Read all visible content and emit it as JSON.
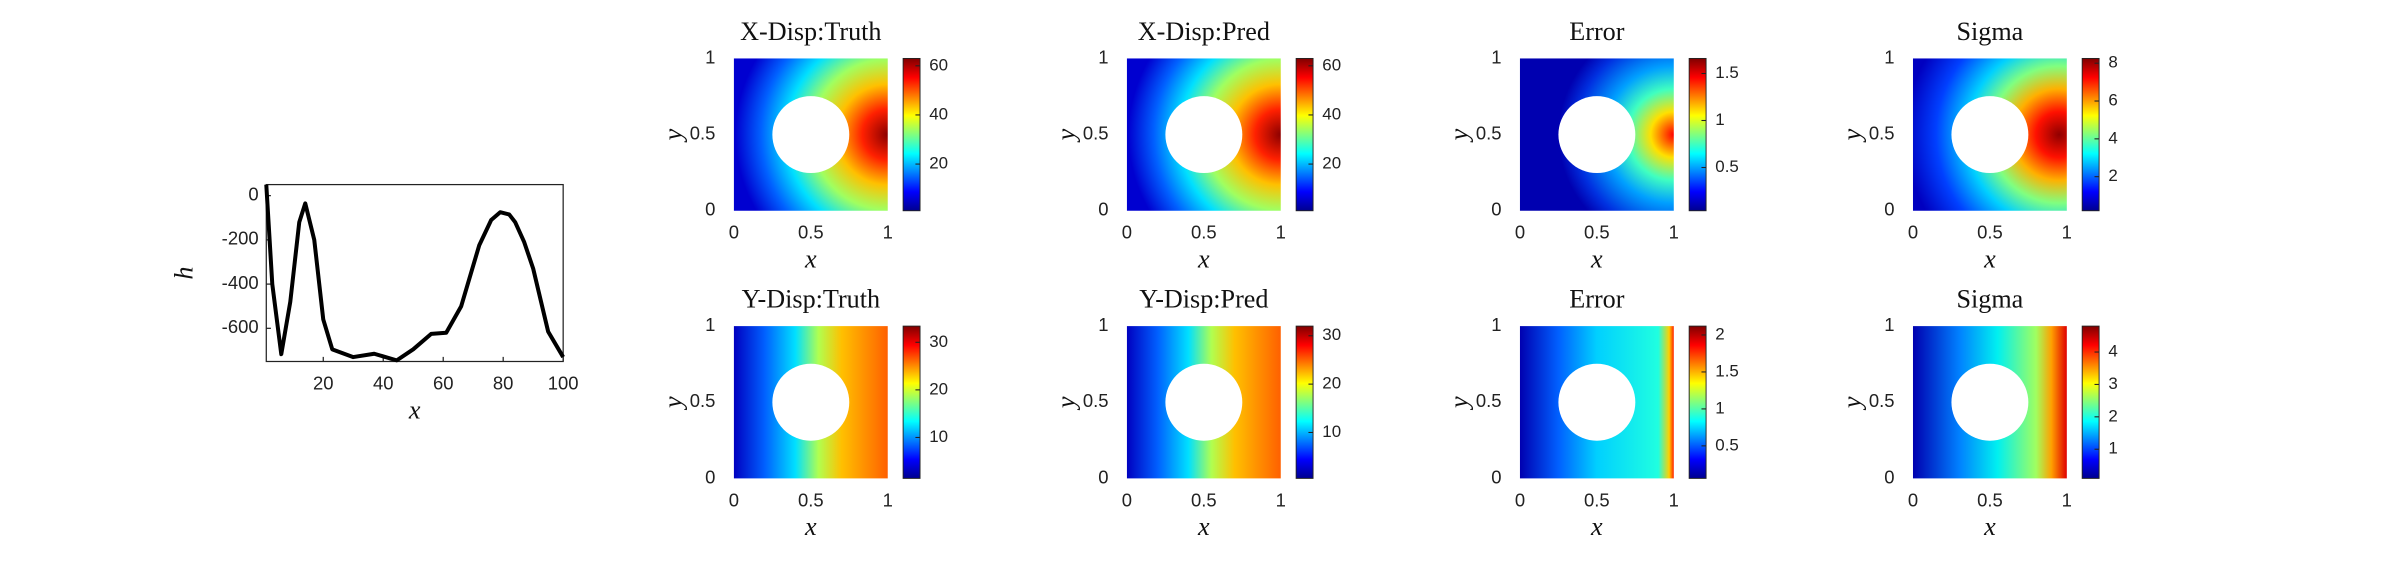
{
  "chart_data": [
    {
      "type": "line",
      "xlabel": "x",
      "ylabel": "h",
      "color": "#000000",
      "x": [
        1,
        3,
        6,
        9,
        12,
        14,
        17,
        20,
        23,
        30,
        37,
        44.5,
        50,
        56,
        61,
        66,
        72,
        76,
        79,
        82,
        84,
        87,
        90,
        95,
        100
      ],
      "values": [
        50,
        -400,
        -717,
        -480,
        -120,
        -35,
        -200,
        -560,
        -695,
        -730,
        -715,
        -745,
        -695,
        -625,
        -620,
        -500,
        -225,
        -110,
        -75,
        -85,
        -120,
        -210,
        -330,
        -615,
        -730
      ],
      "xlim": [
        1,
        100
      ],
      "xticks": [
        20,
        40,
        60,
        80,
        100
      ],
      "ylim": [
        -750,
        50
      ],
      "yticks": [
        0,
        -200,
        -400,
        -600
      ]
    },
    {
      "type": "heatmap",
      "title": "X-Disp:Truth",
      "xlabel": "x",
      "ylabel": "y",
      "xlim": [
        0,
        1
      ],
      "ylim": [
        0,
        1
      ],
      "xticks": [
        0,
        0.5,
        1
      ],
      "yticks": [
        0,
        0.5,
        1
      ],
      "clim": [
        1,
        63
      ],
      "cticks": [
        20,
        40,
        60
      ]
    },
    {
      "type": "heatmap",
      "title": "X-Disp:Pred",
      "xlabel": "x",
      "ylabel": "y",
      "xlim": [
        0,
        1
      ],
      "ylim": [
        0,
        1
      ],
      "xticks": [
        0,
        0.5,
        1
      ],
      "yticks": [
        0,
        0.5,
        1
      ],
      "clim": [
        1,
        63
      ],
      "cticks": [
        20,
        40,
        60
      ]
    },
    {
      "type": "heatmap",
      "title": "Error",
      "xlabel": "x",
      "ylabel": "y",
      "xlim": [
        0,
        1
      ],
      "ylim": [
        0,
        1
      ],
      "xticks": [
        0,
        0.5,
        1
      ],
      "yticks": [
        0,
        0.5,
        1
      ],
      "clim": [
        0.04,
        1.66
      ],
      "cticks": [
        0.5,
        1,
        1.5
      ]
    },
    {
      "type": "heatmap",
      "title": "Sigma",
      "xlabel": "x",
      "ylabel": "y",
      "xlim": [
        0,
        1
      ],
      "ylim": [
        0,
        1
      ],
      "xticks": [
        0,
        0.5,
        1
      ],
      "yticks": [
        0,
        0.5,
        1
      ],
      "clim": [
        0.2,
        8.25
      ],
      "cticks": [
        2,
        4,
        6,
        8
      ]
    },
    {
      "type": "heatmap",
      "title": "Y-Disp:Truth",
      "xlabel": "x",
      "ylabel": "y",
      "xlim": [
        0,
        1
      ],
      "ylim": [
        0,
        1
      ],
      "xticks": [
        0,
        0.5,
        1
      ],
      "yticks": [
        0,
        0.5,
        1
      ],
      "clim": [
        1.4,
        33.4
      ],
      "cticks": [
        10,
        20,
        30
      ]
    },
    {
      "type": "heatmap",
      "title": "Y-Disp:Pred",
      "xlabel": "x",
      "ylabel": "y",
      "xlim": [
        0,
        1
      ],
      "ylim": [
        0,
        1
      ],
      "xticks": [
        0,
        0.5,
        1
      ],
      "yticks": [
        0,
        0.5,
        1
      ],
      "clim": [
        0.5,
        32
      ],
      "cticks": [
        10,
        20,
        30
      ]
    },
    {
      "type": "heatmap",
      "title": "Error",
      "xlabel": "x",
      "ylabel": "y",
      "xlim": [
        0,
        1
      ],
      "ylim": [
        0,
        1
      ],
      "xticks": [
        0,
        0.5,
        1
      ],
      "yticks": [
        0,
        0.5,
        1
      ],
      "clim": [
        0.06,
        2.12
      ],
      "cticks": [
        0.5,
        1,
        1.5,
        2
      ]
    },
    {
      "type": "heatmap",
      "title": "Sigma",
      "xlabel": "x",
      "ylabel": "y",
      "xlim": [
        0,
        1
      ],
      "ylim": [
        0,
        1
      ],
      "xticks": [
        0,
        0.5,
        1
      ],
      "yticks": [
        0,
        0.5,
        1
      ],
      "clim": [
        0.1,
        4.8
      ],
      "cticks": [
        1,
        2,
        3,
        4
      ]
    }
  ]
}
